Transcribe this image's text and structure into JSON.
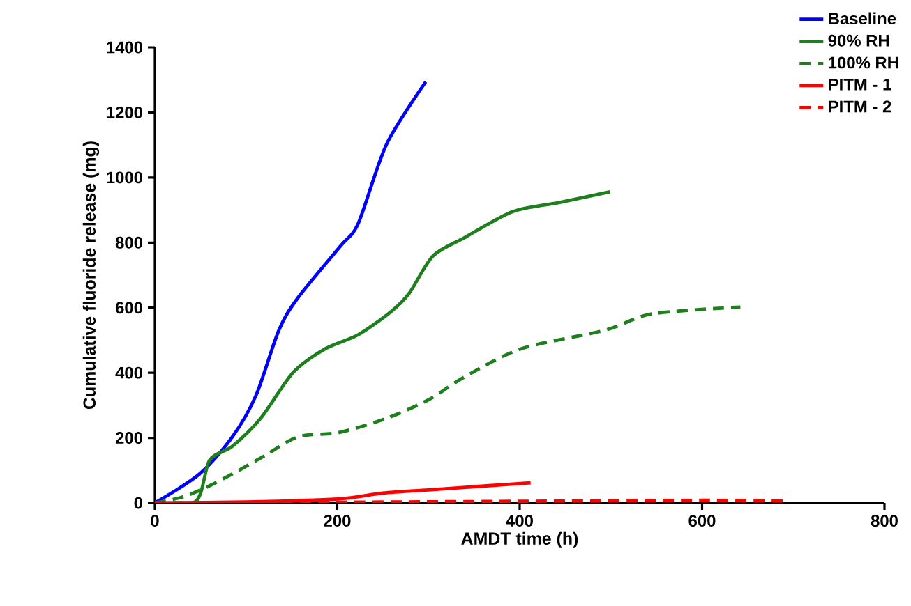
{
  "chart_data": {
    "type": "line",
    "xlabel": "AMDT time (h)",
    "ylabel": "Cumulative fluoride release (mg)",
    "xlim": [
      0,
      800
    ],
    "xticks": [
      0,
      200,
      400,
      600,
      800
    ],
    "ylim": [
      0,
      1400
    ],
    "yticks": [
      0,
      200,
      400,
      600,
      800,
      1000,
      1200,
      1400
    ],
    "legend": "top right",
    "marker": "none",
    "grid": false,
    "series": [
      {
        "name": "Baseline",
        "color": "#0000ff",
        "line_style": "solid",
        "x": [
          0,
          49,
          85,
          111,
          136,
          157,
          203,
          223,
          254,
          297
        ],
        "values": [
          0,
          89,
          203,
          331,
          531,
          631,
          788,
          859,
          1102,
          1294
        ]
      },
      {
        "name": "90% RH",
        "color": "#1f7f1f",
        "line_style": "solid",
        "x": [
          0,
          45,
          60,
          85,
          116,
          152,
          187,
          223,
          259,
          279,
          305,
          340,
          392,
          443,
          499
        ],
        "values": [
          0,
          5,
          131,
          174,
          260,
          402,
          474,
          517,
          588,
          645,
          759,
          816,
          895,
          923,
          956
        ]
      },
      {
        "name": "100% RH",
        "color": "#1f7f1f",
        "line_style": "dashed",
        "x": [
          0,
          29,
          55,
          85,
          121,
          157,
          203,
          254,
          300,
          340,
          402,
          494,
          545,
          642
        ],
        "values": [
          0,
          17,
          46,
          89,
          146,
          203,
          217,
          260,
          317,
          388,
          474,
          531,
          581,
          602
        ]
      },
      {
        "name": "PITM - 1",
        "color": "#ff0000",
        "line_style": "solid",
        "x": [
          0,
          100,
          200,
          250,
          300,
          366,
          412
        ],
        "values": [
          0,
          3,
          12,
          30,
          40,
          53,
          62
        ]
      },
      {
        "name": "PITM - 2",
        "color": "#ff0000",
        "line_style": "dashed",
        "x": [
          0,
          200,
          400,
          600,
          692
        ],
        "values": [
          0,
          2,
          5,
          8,
          6
        ]
      }
    ]
  }
}
